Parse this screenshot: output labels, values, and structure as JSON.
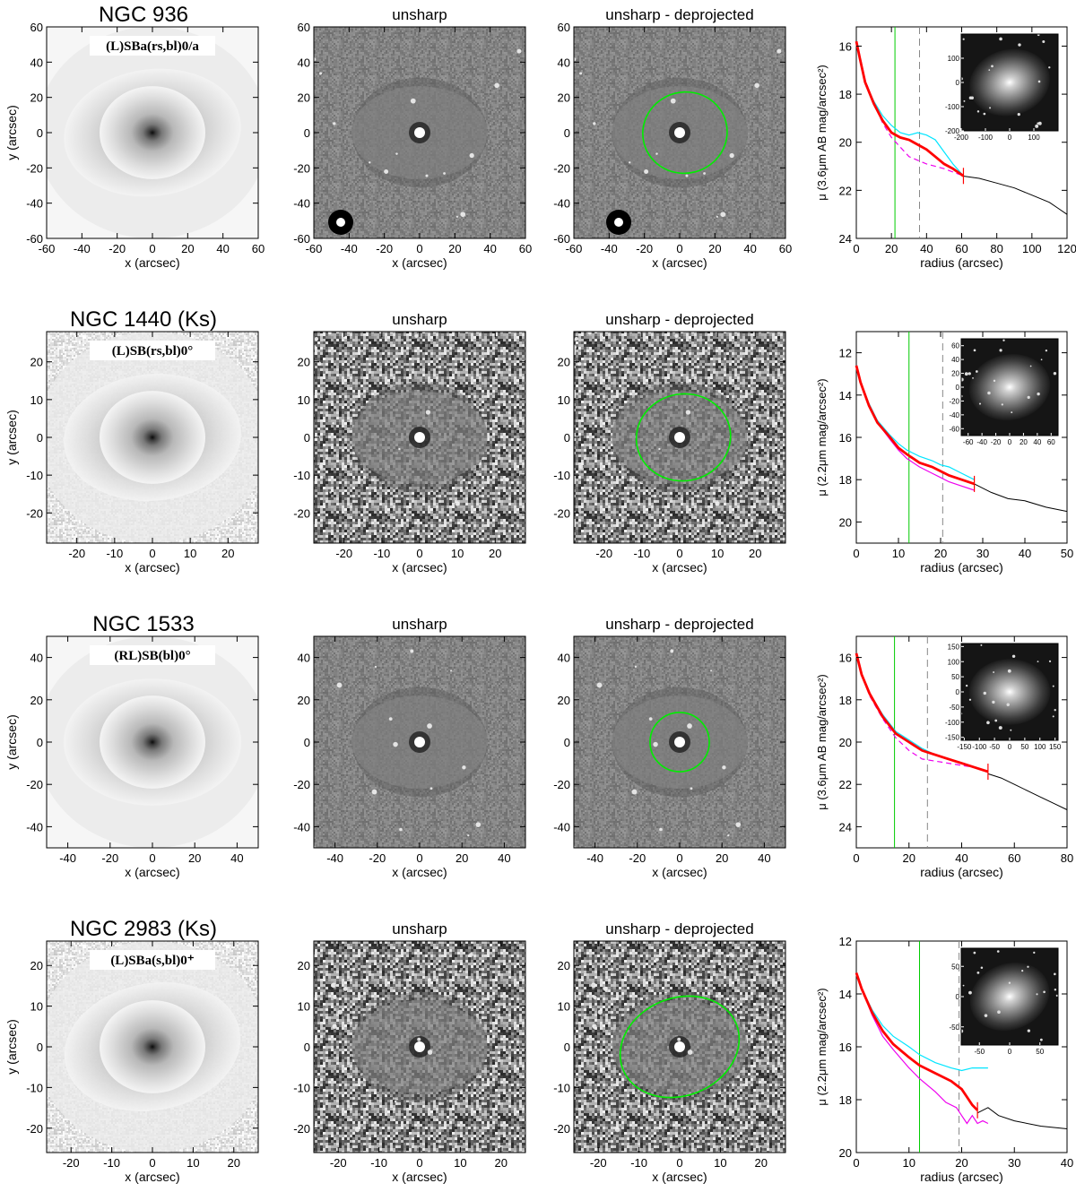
{
  "labels": {
    "unsharp": "unsharp",
    "unsharp_deprojected": "unsharp - deprojected",
    "x_axis": "x (arcsec)",
    "y_axis": "y (arcsec)",
    "radius_axis": "radius (arcsec)"
  },
  "colors": {
    "ellipse": "#00ee00",
    "mean_profile": "#ff0000",
    "major_axis_profile": "#00e5ff",
    "minor_axis_profile": "#ee00ee",
    "outer_profile": "#000000",
    "bar_radius_line": "#00cc00",
    "other_radius_line": "#888888"
  },
  "rows": [
    {
      "galaxy": "NGC  936",
      "classification": "(L)SBa(rs,bl)0/a",
      "image_range": 60,
      "image_ticks": [
        -60,
        -40,
        -20,
        0,
        20,
        40,
        60
      ],
      "ellipse": {
        "cx": 3,
        "cy": 0,
        "rx": 24,
        "ry": 23,
        "angle": -15
      },
      "profile": {
        "ylabel": "μ (3.6μm AB mag/arcsec²)",
        "type": "line",
        "xlim": [
          0,
          120
        ],
        "ylim": [
          24,
          15.2
        ],
        "x_ticks": [
          0,
          20,
          40,
          60,
          80,
          100,
          120
        ],
        "y_ticks": [
          16,
          18,
          20,
          22,
          24
        ],
        "green_line_x": 22,
        "dashed_line_x": 36,
        "red_tick_x": 61,
        "series": [
          {
            "role": "outer",
            "x": [
              60,
              70,
              80,
              90,
              100,
              110,
              115,
              120
            ],
            "y": [
              21.4,
              21.5,
              21.7,
              21.9,
              22.2,
              22.5,
              22.75,
              23.0
            ]
          },
          {
            "role": "minor",
            "x": [
              0,
              2,
              5,
              10,
              15,
              20,
              25,
              30,
              40,
              50,
              61
            ],
            "y": [
              15.8,
              16.4,
              17.4,
              18.4,
              19.2,
              19.8,
              20.2,
              20.6,
              20.9,
              21.1,
              21.4
            ]
          },
          {
            "role": "major",
            "x": [
              0,
              2,
              5,
              10,
              15,
              20,
              25,
              30,
              35,
              40,
              45,
              50,
              55,
              61
            ],
            "y": [
              15.8,
              16.5,
              17.5,
              18.3,
              18.9,
              19.3,
              19.6,
              19.7,
              19.6,
              19.7,
              19.9,
              20.4,
              20.9,
              21.4
            ]
          },
          {
            "role": "mean",
            "x": [
              0,
              2,
              5,
              10,
              15,
              20,
              25,
              30,
              35,
              40,
              45,
              50,
              55,
              61
            ],
            "y": [
              15.8,
              16.5,
              17.5,
              18.4,
              19.1,
              19.6,
              19.8,
              19.9,
              20.1,
              20.3,
              20.6,
              20.9,
              21.1,
              21.4
            ]
          }
        ],
        "inset": {
          "range": 200,
          "ticks_x": [
            -200,
            -100,
            0,
            100
          ],
          "ticks_y": [
            -200,
            -100,
            0,
            100
          ],
          "tick_labels_y": [
            "-200",
            "-100",
            "0",
            "100"
          ]
        }
      }
    },
    {
      "galaxy": "NGC 1440   (Ks)",
      "classification": "(L)SB(rs,bl)0°",
      "image_range": 28,
      "image_ticks": [
        -20,
        -10,
        0,
        10,
        20
      ],
      "ellipse": {
        "cx": 1,
        "cy": 0,
        "rx": 12.5,
        "ry": 11.5,
        "angle": -10
      },
      "profile": {
        "ylabel": "μ (2.2μm mag/arcsec²)",
        "type": "line",
        "xlim": [
          0,
          50
        ],
        "ylim": [
          21,
          11
        ],
        "x_ticks": [
          0,
          10,
          20,
          30,
          40,
          50
        ],
        "y_ticks": [
          12,
          14,
          16,
          18,
          20
        ],
        "green_line_x": 12.5,
        "dashed_line_x": 20.5,
        "red_tick_x": 28,
        "series": [
          {
            "role": "outer",
            "x": [
              28,
              32,
              36,
              40,
              45,
              50
            ],
            "y": [
              18.2,
              18.6,
              18.9,
              19.0,
              19.3,
              19.5
            ]
          },
          {
            "role": "minor",
            "x": [
              0,
              1,
              3,
              5,
              8,
              10,
              12,
              15,
              18,
              20,
              22,
              25,
              28
            ],
            "y": [
              12.6,
              13.4,
              14.5,
              15.3,
              16.1,
              16.6,
              17.0,
              17.4,
              17.7,
              17.9,
              18.1,
              18.3,
              18.5
            ]
          },
          {
            "role": "major",
            "x": [
              0,
              1,
              3,
              5,
              8,
              10,
              12,
              15,
              18,
              20,
              22,
              25,
              28
            ],
            "y": [
              12.6,
              13.4,
              14.4,
              15.2,
              15.9,
              16.3,
              16.6,
              16.9,
              17.1,
              17.3,
              17.4,
              17.7,
              18.0
            ]
          },
          {
            "role": "mean",
            "x": [
              0,
              1,
              3,
              5,
              8,
              10,
              12,
              15,
              18,
              20,
              22,
              25,
              28
            ],
            "y": [
              12.6,
              13.4,
              14.5,
              15.3,
              16.0,
              16.5,
              16.8,
              17.2,
              17.4,
              17.6,
              17.8,
              18.0,
              18.2
            ]
          }
        ],
        "inset": {
          "range": 70,
          "ticks_x": [
            -60,
            -40,
            -20,
            0,
            20,
            40,
            60
          ],
          "ticks_y": [
            -60,
            -40,
            -20,
            0,
            20,
            40,
            60
          ],
          "tick_labels_y": [
            "-60",
            "-40",
            "-20",
            "0",
            "20",
            "40",
            "60"
          ]
        }
      }
    },
    {
      "galaxy": "NGC 1533",
      "classification": "(RL)SB(bl)0°",
      "image_range": 50,
      "image_ticks": [
        -40,
        -20,
        0,
        20,
        40
      ],
      "ellipse": {
        "cx": 0,
        "cy": 0,
        "rx": 14,
        "ry": 14,
        "angle": 0
      },
      "profile": {
        "ylabel": "μ (3.6μm AB mag/arcsec²)",
        "type": "line",
        "xlim": [
          0,
          80
        ],
        "ylim": [
          25,
          15
        ],
        "x_ticks": [
          0,
          20,
          40,
          60,
          80
        ],
        "y_ticks": [
          16,
          18,
          20,
          22,
          24
        ],
        "green_line_x": 14.5,
        "dashed_line_x": 27,
        "red_tick_x": 50,
        "series": [
          {
            "role": "outer",
            "x": [
              50,
              55,
              60,
              65,
              70,
              75,
              80
            ],
            "y": [
              21.5,
              21.7,
              22.0,
              22.3,
              22.6,
              22.9,
              23.2
            ]
          },
          {
            "role": "minor",
            "x": [
              0,
              2,
              5,
              10,
              15,
              20,
              25,
              30,
              35,
              40,
              45,
              50
            ],
            "y": [
              15.8,
              16.8,
              17.8,
              18.9,
              19.8,
              20.4,
              20.8,
              20.9,
              21.0,
              21.1,
              21.2,
              21.4
            ]
          },
          {
            "role": "major",
            "x": [
              0,
              2,
              5,
              10,
              15,
              20,
              25,
              30,
              35,
              40,
              45,
              50
            ],
            "y": [
              15.8,
              16.8,
              17.7,
              18.7,
              19.5,
              19.9,
              20.3,
              20.6,
              20.8,
              21.0,
              21.2,
              21.4
            ]
          },
          {
            "role": "mean",
            "x": [
              0,
              2,
              5,
              10,
              15,
              20,
              25,
              30,
              35,
              40,
              45,
              50
            ],
            "y": [
              15.8,
              16.8,
              17.7,
              18.8,
              19.6,
              20.0,
              20.4,
              20.6,
              20.8,
              21.0,
              21.2,
              21.4
            ]
          }
        ],
        "inset": {
          "range": 160,
          "ticks_x": [
            -150,
            -100,
            -50,
            0,
            50,
            100,
            150
          ],
          "ticks_y": [
            -150,
            -100,
            -50,
            0,
            50,
            100,
            150
          ],
          "tick_labels_y": [
            "-150",
            "-100",
            "-50",
            "0",
            "50",
            "100",
            "150"
          ]
        }
      }
    },
    {
      "galaxy": "NGC 2983   (Ks)",
      "classification": "(L)SBa(s,bl)0⁺",
      "image_range": 26,
      "image_ticks": [
        -20,
        -10,
        0,
        10,
        20
      ],
      "ellipse": {
        "cx": 0,
        "cy": 0,
        "rx": 15,
        "ry": 12,
        "angle": -22
      },
      "profile": {
        "ylabel": "μ (2.2μm mag/arcsec²)",
        "type": "line",
        "xlim": [
          0,
          40
        ],
        "ylim": [
          20,
          12
        ],
        "x_ticks": [
          0,
          10,
          20,
          30,
          40
        ],
        "y_ticks": [
          12,
          14,
          16,
          18,
          20
        ],
        "green_line_x": 12,
        "dashed_line_x": 19.5,
        "red_tick_x": 23,
        "series": [
          {
            "role": "outer",
            "x": [
              23,
              25,
              27,
              30,
              35,
              40
            ],
            "y": [
              18.5,
              18.3,
              18.6,
              18.8,
              19.0,
              19.1
            ]
          },
          {
            "role": "minor",
            "x": [
              0,
              1,
              3,
              5,
              7,
              10,
              12,
              15,
              17,
              19,
              20,
              21,
              22,
              23,
              24,
              25
            ],
            "y": [
              13.2,
              13.8,
              14.8,
              15.6,
              16.1,
              16.8,
              17.2,
              17.7,
              18.1,
              18.3,
              18.6,
              18.9,
              18.6,
              18.9,
              18.8,
              18.9
            ]
          },
          {
            "role": "major",
            "x": [
              0,
              1,
              3,
              5,
              7,
              10,
              12,
              15,
              18,
              20,
              22,
              25
            ],
            "y": [
              13.2,
              13.8,
              14.6,
              15.2,
              15.6,
              16.0,
              16.3,
              16.6,
              16.8,
              16.9,
              16.8,
              16.8
            ]
          },
          {
            "role": "mean",
            "x": [
              0,
              1,
              3,
              5,
              7,
              10,
              12,
              15,
              18,
              20,
              21,
              22,
              23
            ],
            "y": [
              13.2,
              13.8,
              14.7,
              15.4,
              15.9,
              16.4,
              16.7,
              17.0,
              17.3,
              17.6,
              17.9,
              18.2,
              18.4
            ]
          }
        ],
        "inset": {
          "range": 80,
          "ticks_x": [
            -50,
            0,
            50
          ],
          "ticks_y": [
            -50,
            0,
            50
          ],
          "tick_labels_y": [
            "-50",
            "0",
            "50"
          ]
        }
      }
    }
  ]
}
